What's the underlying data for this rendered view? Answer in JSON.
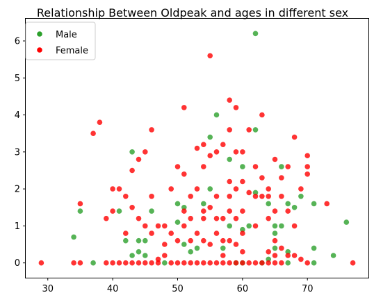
{
  "chart_data": {
    "type": "scatter",
    "title": "Relationship Between Oldpeak and ages in different sex",
    "xlabel": "",
    "ylabel": "",
    "xlim": [
      26.6,
      79.4
    ],
    "ylim": [
      -0.4,
      6.6
    ],
    "x_ticks": [
      30,
      40,
      50,
      60,
      70
    ],
    "y_ticks": [
      0,
      1,
      2,
      3,
      4,
      5,
      6
    ],
    "grid": false,
    "legend_position": "top-left",
    "series": [
      {
        "name": "Male",
        "color": "#2ca02c",
        "points": [
          [
            34,
            0.7
          ],
          [
            35,
            1.4
          ],
          [
            37,
            0
          ],
          [
            41,
            1.4
          ],
          [
            42,
            0.6
          ],
          [
            43,
            3.0
          ],
          [
            43,
            0.2
          ],
          [
            44,
            0.6
          ],
          [
            44,
            0.3
          ],
          [
            45,
            0.6
          ],
          [
            45,
            0.2
          ],
          [
            46,
            1.4
          ],
          [
            48,
            0
          ],
          [
            50,
            1.6
          ],
          [
            50,
            1.1
          ],
          [
            51,
            1.5
          ],
          [
            51,
            0.5
          ],
          [
            52,
            0.3
          ],
          [
            53,
            0.4
          ],
          [
            54,
            1.6
          ],
          [
            55,
            2.0
          ],
          [
            55,
            3.4
          ],
          [
            56,
            4.0
          ],
          [
            57,
            0.4
          ],
          [
            58,
            2.8
          ],
          [
            58,
            1.0
          ],
          [
            59,
            0
          ],
          [
            60,
            2.6
          ],
          [
            60,
            0.9
          ],
          [
            60,
            0
          ],
          [
            61,
            1.0
          ],
          [
            62,
            6.2
          ],
          [
            62,
            3.6
          ],
          [
            62,
            1.9
          ],
          [
            63,
            0
          ],
          [
            64,
            1.6
          ],
          [
            64,
            0.1
          ],
          [
            65,
            1.0
          ],
          [
            65,
            0.8
          ],
          [
            65,
            0.4
          ],
          [
            66,
            2.6
          ],
          [
            66,
            1.0
          ],
          [
            67,
            1.6
          ],
          [
            67,
            0.3
          ],
          [
            67,
            0
          ],
          [
            68,
            1.5
          ],
          [
            69,
            1.8
          ],
          [
            71,
            1.6
          ],
          [
            71,
            0.4
          ],
          [
            71,
            0
          ],
          [
            74,
            0.2
          ],
          [
            76,
            1.1
          ]
        ]
      },
      {
        "name": "Female",
        "color": "#ff0000",
        "points": [
          [
            29,
            0
          ],
          [
            34,
            0
          ],
          [
            35,
            1.6
          ],
          [
            35,
            0
          ],
          [
            37,
            3.5
          ],
          [
            38,
            3.8
          ],
          [
            39,
            1.2
          ],
          [
            39,
            0
          ],
          [
            40,
            2.0
          ],
          [
            40,
            1.4
          ],
          [
            40,
            0
          ],
          [
            41,
            2.0
          ],
          [
            41,
            0
          ],
          [
            42,
            1.8
          ],
          [
            42,
            0.8
          ],
          [
            42,
            0
          ],
          [
            43,
            2.5
          ],
          [
            43,
            1.5
          ],
          [
            43,
            0
          ],
          [
            44,
            2.8
          ],
          [
            44,
            1.2
          ],
          [
            44,
            0
          ],
          [
            45,
            3.0
          ],
          [
            45,
            1.0
          ],
          [
            45,
            0
          ],
          [
            46,
            3.6
          ],
          [
            46,
            1.8
          ],
          [
            46,
            0.8
          ],
          [
            46,
            0
          ],
          [
            47,
            1.0
          ],
          [
            47,
            0.1
          ],
          [
            47,
            0
          ],
          [
            48,
            0.5
          ],
          [
            48,
            0.2
          ],
          [
            48,
            1.0
          ],
          [
            49,
            2.0
          ],
          [
            49,
            0.8
          ],
          [
            49,
            0
          ],
          [
            50,
            2.6
          ],
          [
            50,
            0.6
          ],
          [
            50,
            0
          ],
          [
            51,
            4.2
          ],
          [
            51,
            2.4
          ],
          [
            51,
            1.4
          ],
          [
            51,
            1.0
          ],
          [
            51,
            0
          ],
          [
            52,
            1.8
          ],
          [
            52,
            1.2
          ],
          [
            52,
            0.6
          ],
          [
            52,
            0
          ],
          [
            53,
            3.1
          ],
          [
            53,
            2.0
          ],
          [
            53,
            0.8
          ],
          [
            53,
            0
          ],
          [
            54,
            3.2
          ],
          [
            54,
            2.6
          ],
          [
            54,
            1.4
          ],
          [
            54,
            1.2
          ],
          [
            54,
            0.6
          ],
          [
            54,
            0
          ],
          [
            55,
            5.6
          ],
          [
            55,
            2.9
          ],
          [
            55,
            1.5
          ],
          [
            55,
            0.5
          ],
          [
            55,
            0
          ],
          [
            56,
            3.0
          ],
          [
            56,
            1.8
          ],
          [
            56,
            1.2
          ],
          [
            56,
            0.8
          ],
          [
            56,
            0
          ],
          [
            57,
            3.2
          ],
          [
            57,
            1.2
          ],
          [
            57,
            0.6
          ],
          [
            57,
            0.2
          ],
          [
            57,
            0
          ],
          [
            58,
            4.4
          ],
          [
            58,
            3.6
          ],
          [
            58,
            2.2
          ],
          [
            58,
            1.8
          ],
          [
            58,
            1.4
          ],
          [
            58,
            0.6
          ],
          [
            58,
            0
          ],
          [
            59,
            4.2
          ],
          [
            59,
            3.0
          ],
          [
            59,
            2.0
          ],
          [
            59,
            1.2
          ],
          [
            59,
            0.5
          ],
          [
            59,
            0
          ],
          [
            60,
            3.0
          ],
          [
            60,
            2.2
          ],
          [
            60,
            1.4
          ],
          [
            60,
            0.8
          ],
          [
            60,
            0.3
          ],
          [
            60,
            0
          ],
          [
            61,
            3.6
          ],
          [
            61,
            1.9
          ],
          [
            61,
            0
          ],
          [
            62,
            2.6
          ],
          [
            62,
            1.8
          ],
          [
            62,
            1.0
          ],
          [
            62,
            0
          ],
          [
            63,
            4.0
          ],
          [
            63,
            2.3
          ],
          [
            63,
            1.8
          ],
          [
            63,
            0
          ],
          [
            64,
            1.8
          ],
          [
            64,
            1.2
          ],
          [
            64,
            2.0
          ],
          [
            64,
            0.3
          ],
          [
            64,
            0
          ],
          [
            65,
            2.8
          ],
          [
            65,
            1.4
          ],
          [
            65,
            0.6
          ],
          [
            65,
            0.2
          ],
          [
            65,
            0
          ],
          [
            66,
            2.3
          ],
          [
            66,
            1.8
          ],
          [
            66,
            0.4
          ],
          [
            66,
            0
          ],
          [
            67,
            2.6
          ],
          [
            67,
            1.4
          ],
          [
            67,
            0.2
          ],
          [
            68,
            3.4
          ],
          [
            68,
            1.0
          ],
          [
            68,
            0.2
          ],
          [
            69,
            2.0
          ],
          [
            69,
            0.1
          ],
          [
            70,
            2.9
          ],
          [
            70,
            2.6
          ],
          [
            70,
            2.4
          ],
          [
            70,
            0
          ],
          [
            73,
            1.6
          ],
          [
            77,
            0
          ]
        ]
      }
    ]
  }
}
